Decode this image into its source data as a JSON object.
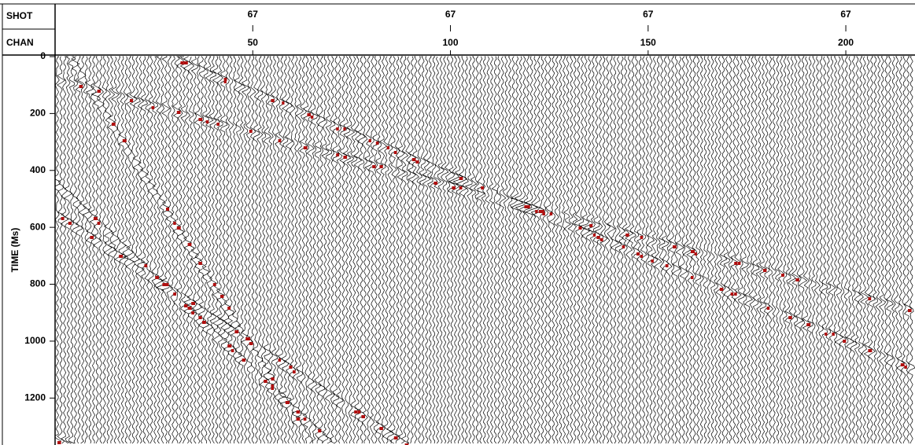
{
  "chart_data": {
    "type": "seismic",
    "header_labels": [
      "SHOT",
      "CHAN"
    ],
    "ylabel": "TIME (Ms)",
    "xlim": [
      0,
      217.5
    ],
    "xticks": [
      50,
      100,
      150,
      200
    ],
    "shot_labels": [
      "67",
      "67",
      "67",
      "67"
    ],
    "ylim": [
      0,
      1365
    ],
    "yticks": [
      0,
      200,
      400,
      600,
      800,
      1000,
      1200
    ]
  }
}
